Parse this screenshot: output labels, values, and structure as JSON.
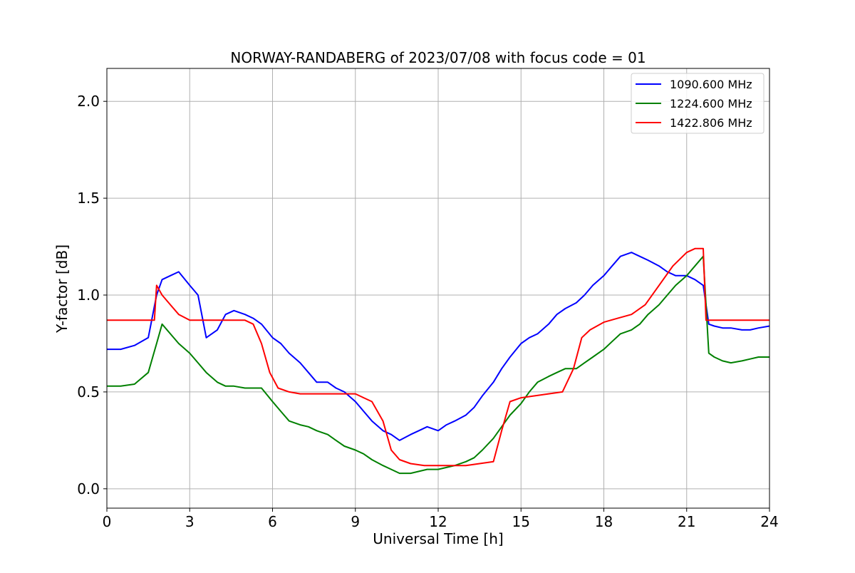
{
  "chart_data": {
    "type": "line",
    "title": "NORWAY-RANDABERG of 2023/07/08 with focus code = 01",
    "xlabel": "Universal Time [h]",
    "ylabel": "Y-factor [dB]",
    "xlim": [
      0,
      24
    ],
    "ylim": [
      -0.1,
      2.17
    ],
    "xticks": [
      0,
      3,
      6,
      9,
      12,
      15,
      18,
      21,
      24
    ],
    "yticks": [
      0.0,
      0.5,
      1.0,
      1.5,
      2.0
    ],
    "xtick_labels": [
      "0",
      "3",
      "6",
      "9",
      "12",
      "15",
      "18",
      "21",
      "24"
    ],
    "ytick_labels": [
      "0.0",
      "0.5",
      "1.0",
      "1.5",
      "2.0"
    ],
    "grid": true,
    "legend_position": "top-right",
    "series": [
      {
        "name": "1090.600 MHz",
        "color": "#0000ff",
        "x": [
          0,
          0.5,
          1.0,
          1.5,
          1.8,
          2.0,
          2.3,
          2.6,
          3.0,
          3.3,
          3.6,
          4.0,
          4.3,
          4.6,
          5.0,
          5.3,
          5.6,
          6.0,
          6.3,
          6.6,
          7.0,
          7.3,
          7.6,
          8.0,
          8.3,
          8.6,
          9.0,
          9.3,
          9.6,
          10.0,
          10.3,
          10.6,
          11.0,
          11.3,
          11.6,
          12.0,
          12.3,
          12.6,
          13.0,
          13.3,
          13.6,
          14.0,
          14.3,
          14.6,
          15.0,
          15.3,
          15.6,
          16.0,
          16.3,
          16.6,
          17.0,
          17.3,
          17.6,
          18.0,
          18.3,
          18.6,
          19.0,
          19.3,
          19.6,
          20.0,
          20.3,
          20.6,
          21.0,
          21.3,
          21.6,
          21.8,
          22.0,
          22.3,
          22.6,
          23.0,
          23.3,
          23.6,
          24.0
        ],
        "y": [
          0.72,
          0.72,
          0.74,
          0.78,
          1.0,
          1.08,
          1.1,
          1.12,
          1.05,
          1.0,
          0.78,
          0.82,
          0.9,
          0.92,
          0.9,
          0.88,
          0.85,
          0.78,
          0.75,
          0.7,
          0.65,
          0.6,
          0.55,
          0.55,
          0.52,
          0.5,
          0.45,
          0.4,
          0.35,
          0.3,
          0.28,
          0.25,
          0.28,
          0.3,
          0.32,
          0.3,
          0.33,
          0.35,
          0.38,
          0.42,
          0.48,
          0.55,
          0.62,
          0.68,
          0.75,
          0.78,
          0.8,
          0.85,
          0.9,
          0.93,
          0.96,
          1.0,
          1.05,
          1.1,
          1.15,
          1.2,
          1.22,
          1.2,
          1.18,
          1.15,
          1.12,
          1.1,
          1.1,
          1.08,
          1.05,
          0.85,
          0.84,
          0.83,
          0.83,
          0.82,
          0.82,
          0.83,
          0.84
        ]
      },
      {
        "name": "1224.600 MHz",
        "color": "#008000",
        "x": [
          0,
          0.5,
          1.0,
          1.5,
          1.8,
          2.0,
          2.3,
          2.6,
          3.0,
          3.3,
          3.6,
          4.0,
          4.3,
          4.6,
          5.0,
          5.3,
          5.6,
          6.0,
          6.3,
          6.6,
          7.0,
          7.3,
          7.6,
          8.0,
          8.3,
          8.6,
          9.0,
          9.3,
          9.6,
          10.0,
          10.3,
          10.6,
          11.0,
          11.3,
          11.6,
          12.0,
          12.3,
          12.6,
          13.0,
          13.3,
          13.6,
          14.0,
          14.3,
          14.6,
          15.0,
          15.3,
          15.6,
          16.0,
          16.3,
          16.6,
          17.0,
          17.3,
          17.6,
          18.0,
          18.3,
          18.6,
          19.0,
          19.3,
          19.6,
          20.0,
          20.3,
          20.6,
          21.0,
          21.3,
          21.6,
          21.8,
          22.0,
          22.3,
          22.6,
          23.0,
          23.3,
          23.6,
          24.0
        ],
        "y": [
          0.53,
          0.53,
          0.54,
          0.6,
          0.75,
          0.85,
          0.8,
          0.75,
          0.7,
          0.65,
          0.6,
          0.55,
          0.53,
          0.53,
          0.52,
          0.52,
          0.52,
          0.45,
          0.4,
          0.35,
          0.33,
          0.32,
          0.3,
          0.28,
          0.25,
          0.22,
          0.2,
          0.18,
          0.15,
          0.12,
          0.1,
          0.08,
          0.08,
          0.09,
          0.1,
          0.1,
          0.11,
          0.12,
          0.14,
          0.16,
          0.2,
          0.26,
          0.32,
          0.38,
          0.44,
          0.5,
          0.55,
          0.58,
          0.6,
          0.62,
          0.62,
          0.65,
          0.68,
          0.72,
          0.76,
          0.8,
          0.82,
          0.85,
          0.9,
          0.95,
          1.0,
          1.05,
          1.1,
          1.15,
          1.2,
          0.7,
          0.68,
          0.66,
          0.65,
          0.66,
          0.67,
          0.68,
          0.68
        ]
      },
      {
        "name": "1422.806 MHz",
        "color": "#ff0000",
        "x": [
          0,
          0.5,
          1.0,
          1.5,
          1.72,
          1.8,
          2.0,
          2.3,
          2.6,
          3.0,
          3.3,
          3.6,
          4.0,
          4.5,
          5.0,
          5.3,
          5.6,
          5.9,
          6.2,
          6.6,
          7.0,
          7.5,
          8.0,
          8.5,
          9.0,
          9.3,
          9.6,
          10.0,
          10.3,
          10.6,
          11.0,
          11.5,
          12.0,
          12.5,
          13.0,
          13.5,
          14.0,
          14.3,
          14.6,
          15.0,
          15.5,
          16.0,
          16.5,
          16.9,
          17.2,
          17.5,
          18.0,
          18.5,
          19.0,
          19.5,
          20.0,
          20.5,
          21.0,
          21.3,
          21.6,
          21.7,
          22.0,
          22.5,
          23.0,
          23.5,
          24.0
        ],
        "y": [
          0.87,
          0.87,
          0.87,
          0.87,
          0.87,
          1.05,
          1.0,
          0.95,
          0.9,
          0.87,
          0.87,
          0.87,
          0.87,
          0.87,
          0.87,
          0.85,
          0.75,
          0.6,
          0.52,
          0.5,
          0.49,
          0.49,
          0.49,
          0.49,
          0.49,
          0.47,
          0.45,
          0.35,
          0.2,
          0.15,
          0.13,
          0.12,
          0.12,
          0.12,
          0.12,
          0.13,
          0.14,
          0.3,
          0.45,
          0.47,
          0.48,
          0.49,
          0.5,
          0.62,
          0.78,
          0.82,
          0.86,
          0.88,
          0.9,
          0.95,
          1.05,
          1.15,
          1.22,
          1.24,
          1.24,
          0.87,
          0.87,
          0.87,
          0.87,
          0.87,
          0.87
        ]
      }
    ]
  }
}
